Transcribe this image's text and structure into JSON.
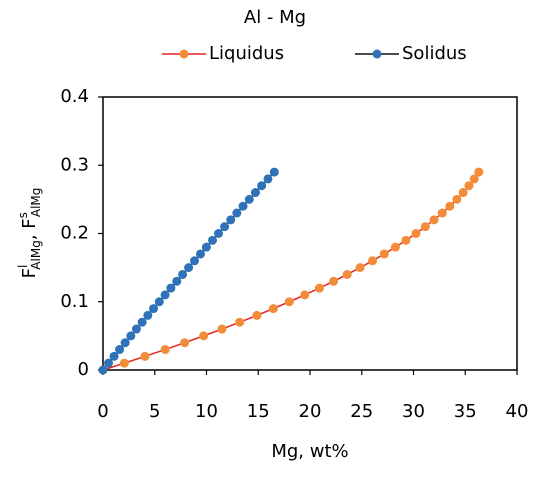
{
  "chart_data": {
    "type": "line",
    "title": "Al - Mg",
    "xlabel": "Mg, wt%",
    "ylabel": [
      "F",
      "l",
      "AlMg",
      ", F",
      "s",
      "AlMg"
    ],
    "xlim": [
      0,
      40
    ],
    "xticks": [
      0,
      5,
      10,
      15,
      20,
      25,
      30,
      35,
      40
    ],
    "ylim": [
      0,
      0.4
    ],
    "yticks": [
      0,
      0.1,
      0.2,
      0.3,
      0.4
    ],
    "grid": false,
    "legend": "top",
    "series": [
      {
        "name": "Liquidus",
        "color": "#f28c38",
        "line_color": "#e8231c",
        "x": [
          0,
          2.06,
          4.06,
          6.01,
          7.89,
          9.72,
          11.5,
          13.21,
          14.87,
          16.46,
          18.0,
          19.49,
          20.91,
          22.28,
          23.59,
          24.84,
          26.04,
          27.17,
          28.25,
          29.27,
          30.24,
          31.14,
          31.99,
          32.78,
          33.51,
          34.19,
          34.8,
          35.36,
          35.87,
          36.31
        ],
        "values": [
          0,
          0.01,
          0.02,
          0.03,
          0.04,
          0.05,
          0.06,
          0.07,
          0.08,
          0.09,
          0.1,
          0.11,
          0.12,
          0.13,
          0.14,
          0.15,
          0.16,
          0.17,
          0.18,
          0.19,
          0.2,
          0.21,
          0.22,
          0.23,
          0.24,
          0.25,
          0.26,
          0.27,
          0.28,
          0.29
        ]
      },
      {
        "name": "Solidus",
        "color": "#2f72b8",
        "line_color": "#111111",
        "x": [
          0,
          0.53,
          1.07,
          1.6,
          2.14,
          2.69,
          3.23,
          3.78,
          4.33,
          4.88,
          5.44,
          6.0,
          6.56,
          7.13,
          7.69,
          8.27,
          8.84,
          9.42,
          9.99,
          10.58,
          11.16,
          11.75,
          12.34,
          12.93,
          13.53,
          14.13,
          14.73,
          15.33,
          15.94,
          16.55
        ],
        "values": [
          0,
          0.01,
          0.02,
          0.03,
          0.04,
          0.05,
          0.06,
          0.07,
          0.08,
          0.09,
          0.1,
          0.11,
          0.12,
          0.13,
          0.14,
          0.15,
          0.16,
          0.17,
          0.18,
          0.19,
          0.2,
          0.21,
          0.22,
          0.23,
          0.24,
          0.25,
          0.26,
          0.27,
          0.28,
          0.29
        ]
      }
    ]
  }
}
